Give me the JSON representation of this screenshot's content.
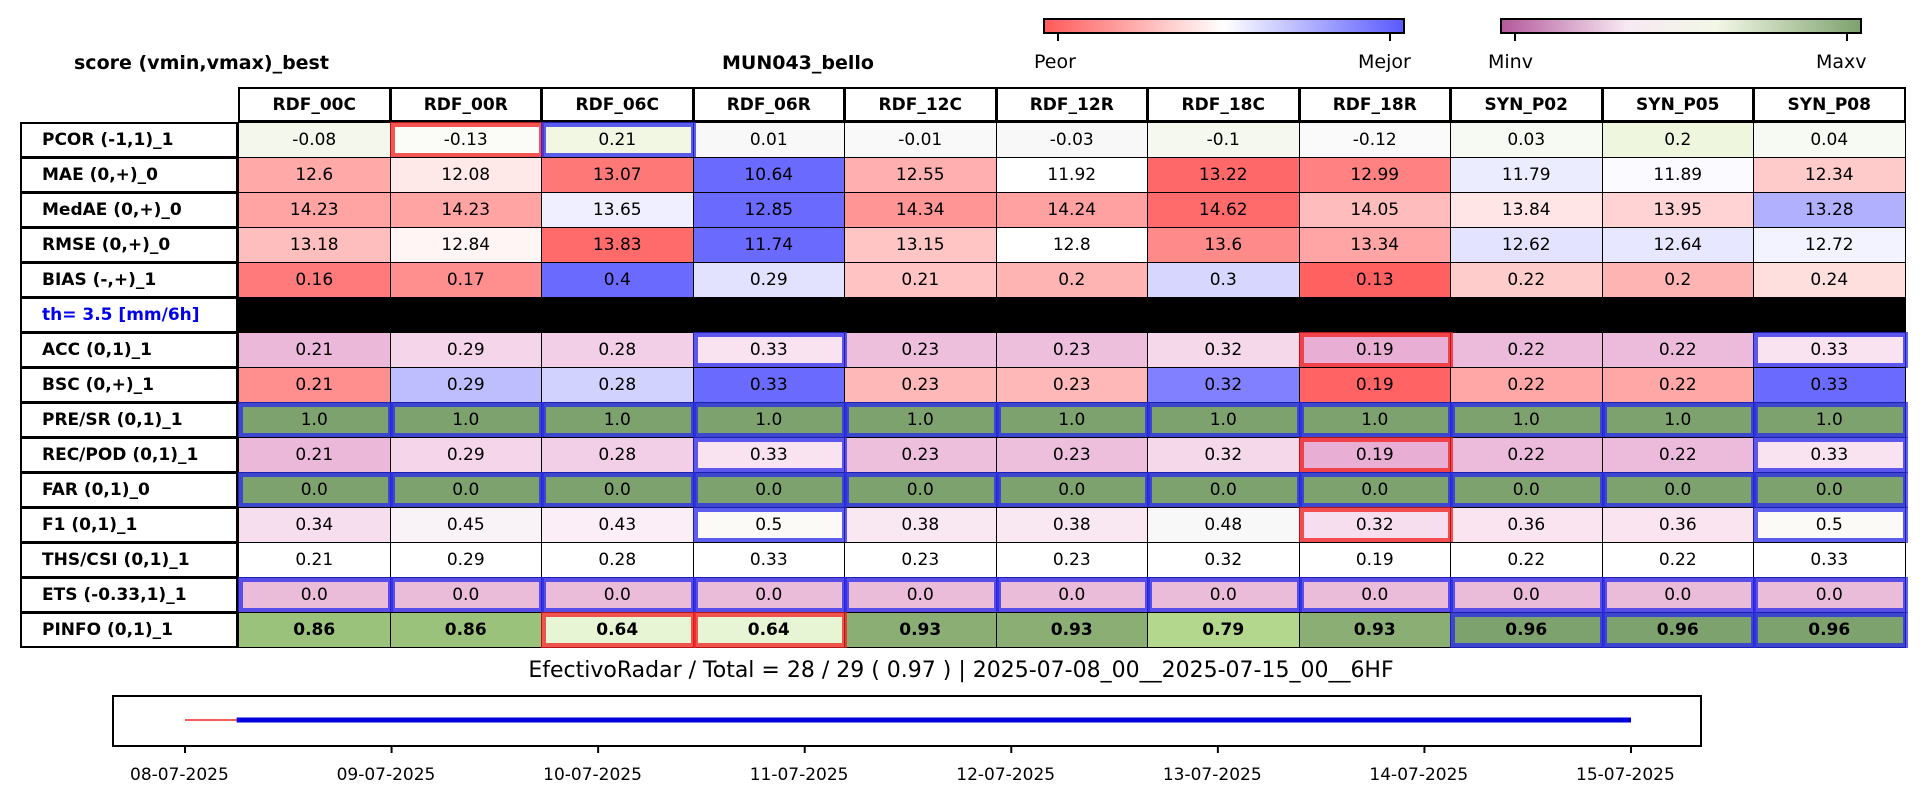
{
  "title_left": "score (vmin,vmax)_best",
  "title_center": "MUN043_bello",
  "colorbar1": {
    "left_label": "Peor",
    "right_label": "Mejor"
  },
  "colorbar2": {
    "left_label": "Minv",
    "right_label": "Maxv"
  },
  "colors": {
    "red": "#ff5a5a",
    "blue": "#5a5aff",
    "green": "#7ea26e",
    "purple": "#b45a9c",
    "black_row": "#000000",
    "threshold_text": "#0000ee"
  },
  "footer": "EfectivoRadar / Total  =  28 / 29 ( 0.97 ) | 2025-07-08_00__2025-07-15_00__6HF",
  "timeline": {
    "dates": [
      "08-07-2025",
      "09-07-2025",
      "10-07-2025",
      "11-07-2025",
      "12-07-2025",
      "13-07-2025",
      "14-07-2025",
      "15-07-2025"
    ],
    "red_segment": [
      "08-07-2025 00:00",
      "08-07-2025 06:00"
    ],
    "blue_segment": [
      "08-07-2025 06:00",
      "15-07-2025 00:00"
    ]
  },
  "chart_data": {
    "type": "table",
    "columns": [
      "RDF_00C",
      "RDF_00R",
      "RDF_06C",
      "RDF_06R",
      "RDF_12C",
      "RDF_12R",
      "RDF_18C",
      "RDF_18R",
      "SYN_P02",
      "SYN_P05",
      "SYN_P08"
    ],
    "rows": [
      {
        "label": "PCOR (-1,1)_1",
        "values": [
          "-0.08",
          "-0.13",
          "0.21",
          "0.01",
          "-0.01",
          "-0.03",
          "-0.1",
          "-0.12",
          "0.03",
          "0.2",
          "0.04"
        ],
        "colors": [
          "#f4f8ec",
          "#fbfcf7",
          "#f1f7e2",
          "#f8f8f8",
          "#f9f9f9",
          "#f8f8f8",
          "#f5f8ee",
          "#fafafa",
          "#f7f9f3",
          "#eef6dd",
          "#f7f9f3"
        ],
        "hl": {
          "1": "red",
          "2": "blue"
        }
      },
      {
        "label": "MAE (0,+)_0",
        "values": [
          "12.6",
          "12.08",
          "13.07",
          "10.64",
          "12.55",
          "11.92",
          "13.22",
          "12.99",
          "11.79",
          "11.89",
          "12.34"
        ],
        "colors": [
          "#ffa9a9",
          "#ffe8e8",
          "#ff7878",
          "#6a6aff",
          "#ffafaf",
          "#ffffff",
          "#ff6868",
          "#ff8181",
          "#ececff",
          "#fbfbff",
          "#ffcaca"
        ]
      },
      {
        "label": "MedAE (0,+)_0",
        "values": [
          "14.23",
          "14.23",
          "13.65",
          "12.85",
          "14.34",
          "14.24",
          "14.62",
          "14.05",
          "13.84",
          "13.95",
          "13.28"
        ],
        "colors": [
          "#ffa3a3",
          "#ffa3a3",
          "#efefff",
          "#6a6aff",
          "#ff9595",
          "#ffa1a1",
          "#ff6a6a",
          "#ffbcbc",
          "#ffe5e5",
          "#ffd3d3",
          "#b0b0ff"
        ]
      },
      {
        "label": "RMSE (0,+)_0",
        "values": [
          "13.18",
          "12.84",
          "13.83",
          "11.74",
          "13.15",
          "12.8",
          "13.6",
          "13.34",
          "12.62",
          "12.64",
          "12.72"
        ],
        "colors": [
          "#ffbebe",
          "#fff5f5",
          "#ff6a6a",
          "#6a6aff",
          "#ffc4c4",
          "#ffffff",
          "#ff8a8a",
          "#ffa5a5",
          "#e3e3ff",
          "#e7e7ff",
          "#f3f3ff"
        ]
      },
      {
        "label": "BIAS (-,+)_1",
        "values": [
          "0.16",
          "0.17",
          "0.4",
          "0.29",
          "0.21",
          "0.2",
          "0.3",
          "0.13",
          "0.22",
          "0.2",
          "0.24"
        ],
        "colors": [
          "#ff7a7a",
          "#ff8f8f",
          "#6a6aff",
          "#e2e2ff",
          "#ffc3c3",
          "#ffb4b4",
          "#d6d6ff",
          "#ff6060",
          "#ffcccc",
          "#ffb4b4",
          "#ffdede"
        ]
      },
      {
        "label": "th= 3.5 [mm/6h]",
        "separator": true
      },
      {
        "label": "ACC (0,1)_1",
        "values": [
          "0.21",
          "0.29",
          "0.28",
          "0.33",
          "0.23",
          "0.23",
          "0.32",
          "0.19",
          "0.22",
          "0.22",
          "0.33"
        ],
        "colors": [
          "#ebb8d9",
          "#f5d5ea",
          "#f2cfe6",
          "#f9e3f1",
          "#edbfdd",
          "#edbfdd",
          "#f6d8eb",
          "#e9aed3",
          "#ecbbdb",
          "#ecbbdb",
          "#f9e3f1"
        ],
        "hl": {
          "3": "blue",
          "7": "red",
          "10": "blue"
        }
      },
      {
        "label": "BSC (0,+)_1",
        "values": [
          "0.21",
          "0.29",
          "0.28",
          "0.33",
          "0.23",
          "0.23",
          "0.32",
          "0.19",
          "0.22",
          "0.22",
          "0.33"
        ],
        "colors": [
          "#ff8f8f",
          "#bebeff",
          "#d2d2ff",
          "#6a6aff",
          "#ffb8b8",
          "#ffb8b8",
          "#8181ff",
          "#ff6363",
          "#ffa7a7",
          "#ffa7a7",
          "#6a6aff"
        ]
      },
      {
        "label": "PRE/SR (0,1)_1",
        "values": [
          "1.0",
          "1.0",
          "1.0",
          "1.0",
          "1.0",
          "1.0",
          "1.0",
          "1.0",
          "1.0",
          "1.0",
          "1.0"
        ],
        "colors": [
          "#7ea26e",
          "#7ea26e",
          "#7ea26e",
          "#7ea26e",
          "#7ea26e",
          "#7ea26e",
          "#7ea26e",
          "#7ea26e",
          "#7ea26e",
          "#7ea26e",
          "#7ea26e"
        ],
        "hl": {
          "0": "blue",
          "1": "blue",
          "2": "blue",
          "3": "blue",
          "4": "blue",
          "5": "blue",
          "6": "blue",
          "7": "blue",
          "8": "blue",
          "9": "blue",
          "10": "blue"
        }
      },
      {
        "label": "REC/POD (0,1)_1",
        "values": [
          "0.21",
          "0.29",
          "0.28",
          "0.33",
          "0.23",
          "0.23",
          "0.32",
          "0.19",
          "0.22",
          "0.22",
          "0.33"
        ],
        "colors": [
          "#ebb8d9",
          "#f5d5ea",
          "#f2cfe6",
          "#f9e3f1",
          "#edbfdd",
          "#edbfdd",
          "#f6d8eb",
          "#e9aed3",
          "#ecbbdb",
          "#ecbbdb",
          "#f9e3f1"
        ],
        "hl": {
          "3": "blue",
          "7": "red",
          "10": "blue"
        }
      },
      {
        "label": "FAR (0,1)_0",
        "values": [
          "0.0",
          "0.0",
          "0.0",
          "0.0",
          "0.0",
          "0.0",
          "0.0",
          "0.0",
          "0.0",
          "0.0",
          "0.0"
        ],
        "colors": [
          "#7ea26e",
          "#7ea26e",
          "#7ea26e",
          "#7ea26e",
          "#7ea26e",
          "#7ea26e",
          "#7ea26e",
          "#7ea26e",
          "#7ea26e",
          "#7ea26e",
          "#7ea26e"
        ],
        "hl": {
          "0": "blue",
          "1": "blue",
          "2": "blue",
          "3": "blue",
          "4": "blue",
          "5": "blue",
          "6": "blue",
          "7": "blue",
          "8": "blue",
          "9": "blue",
          "10": "blue"
        }
      },
      {
        "label": "F1 (0,1)_1",
        "values": [
          "0.34",
          "0.45",
          "0.43",
          "0.5",
          "0.38",
          "0.38",
          "0.48",
          "0.32",
          "0.36",
          "0.36",
          "0.5"
        ],
        "colors": [
          "#f7deee",
          "#f9f3f7",
          "#fbeef6",
          "#fbfaf6",
          "#f9e7f2",
          "#f9e7f2",
          "#f8f8f8",
          "#f7deee",
          "#f9e4f0",
          "#f9e4f0",
          "#fbfaf6"
        ],
        "hl": {
          "3": "blue",
          "7": "red",
          "10": "blue"
        }
      },
      {
        "label": "THS/CSI (0,1)_1",
        "values": [
          "0.21",
          "0.29",
          "0.28",
          "0.33",
          "0.23",
          "0.23",
          "0.32",
          "0.19",
          "0.22",
          "0.22",
          "0.33"
        ],
        "colors": [
          "#ffffff",
          "#ffffff",
          "#ffffff",
          "#ffffff",
          "#ffffff",
          "#ffffff",
          "#ffffff",
          "#ffffff",
          "#ffffff",
          "#ffffff",
          "#ffffff"
        ]
      },
      {
        "label": "ETS (-0.33,1)_1",
        "values": [
          "0.0",
          "0.0",
          "0.0",
          "0.0",
          "0.0",
          "0.0",
          "0.0",
          "0.0",
          "0.0",
          "0.0",
          "0.0"
        ],
        "colors": [
          "#ebbcda",
          "#ebbcda",
          "#ebbcda",
          "#ebbcda",
          "#ebbcda",
          "#ebbcda",
          "#ebbcda",
          "#ebbcda",
          "#ebbcda",
          "#ebbcda",
          "#ebbcda"
        ],
        "hl": {
          "0": "blue",
          "1": "blue",
          "2": "blue",
          "3": "blue",
          "4": "blue",
          "5": "blue",
          "6": "blue",
          "7": "blue",
          "8": "blue",
          "9": "blue",
          "10": "blue"
        }
      },
      {
        "label": "PINFO (0,1)_1",
        "values": [
          "0.86",
          "0.86",
          "0.64",
          "0.64",
          "0.93",
          "0.93",
          "0.79",
          "0.93",
          "0.96",
          "0.96",
          "0.96"
        ],
        "colors": [
          "#9bc27b",
          "#9bc27b",
          "#e8f5d4",
          "#e8f5d4",
          "#8aae74",
          "#8aae74",
          "#b3d78d",
          "#8aae74",
          "#7ea26e",
          "#7ea26e",
          "#7ea26e"
        ],
        "bold": true,
        "hl": {
          "2": "red",
          "3": "red",
          "8": "blue",
          "9": "blue",
          "10": "blue"
        }
      }
    ]
  }
}
